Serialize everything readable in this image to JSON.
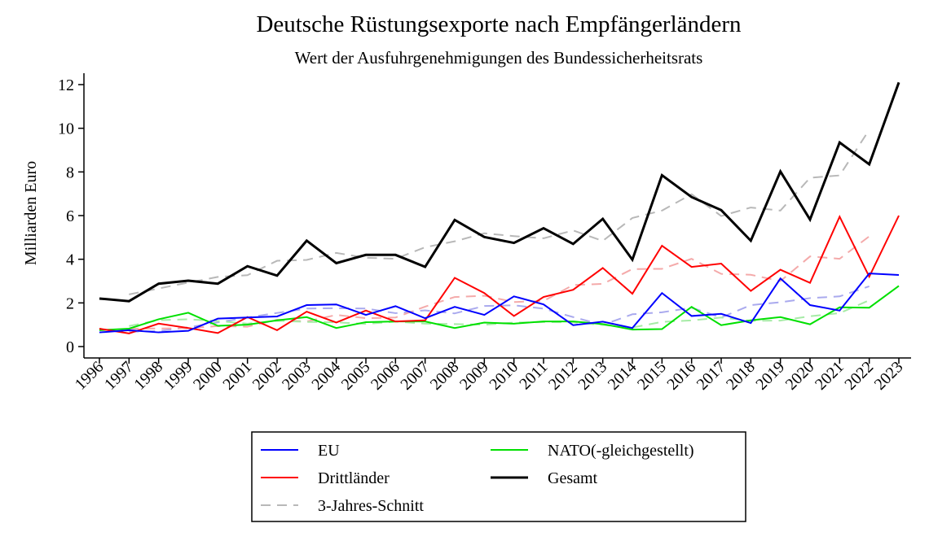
{
  "chart_data": {
    "type": "line",
    "title": "Deutsche Rüstungsexporte nach Empfängerländern",
    "subtitle": "Wert der Ausfuhrgenehmigungen des Bundessicherheitsrats",
    "xlabel": "",
    "ylabel": "Milliarden Euro",
    "ylim": [
      0,
      12
    ],
    "yticks": [
      0,
      2,
      4,
      6,
      8,
      10,
      12
    ],
    "grid": false,
    "legend_position": "bottom",
    "categories": [
      "1996",
      "1997",
      "1998",
      "1999",
      "2000",
      "2001",
      "2002",
      "2003",
      "2004",
      "2005",
      "2006",
      "2007",
      "2008",
      "2009",
      "2010",
      "2011",
      "2012",
      "2013",
      "2014",
      "2015",
      "2016",
      "2017",
      "2018",
      "2019",
      "2020",
      "2021",
      "2022",
      "2023"
    ],
    "series": [
      {
        "name": "EU",
        "color": "#0000ff",
        "values": [
          0.65,
          0.75,
          0.65,
          0.72,
          1.28,
          1.33,
          1.38,
          1.9,
          1.93,
          1.45,
          1.85,
          1.3,
          1.82,
          1.45,
          2.3,
          1.93,
          0.98,
          1.14,
          0.85,
          2.45,
          1.4,
          1.5,
          1.08,
          3.12,
          1.9,
          1.65,
          3.35,
          3.28
        ]
      },
      {
        "name": "Drittländer",
        "color": "#ff0000",
        "values": [
          0.82,
          0.6,
          1.05,
          0.85,
          0.62,
          1.35,
          0.75,
          1.6,
          1.1,
          1.65,
          1.15,
          1.2,
          3.15,
          2.45,
          1.4,
          2.27,
          2.6,
          3.6,
          2.42,
          4.62,
          3.65,
          3.8,
          2.55,
          3.52,
          2.92,
          5.95,
          3.2,
          6.0
        ]
      },
      {
        "name": "NATO(-gleichgestellt)",
        "color": "#00e000",
        "values": [
          0.75,
          0.82,
          1.25,
          1.55,
          0.95,
          1.0,
          1.2,
          1.35,
          0.85,
          1.12,
          1.15,
          1.15,
          0.85,
          1.1,
          1.05,
          1.15,
          1.15,
          1.03,
          0.78,
          0.8,
          1.82,
          0.98,
          1.2,
          1.35,
          1.02,
          1.8,
          1.78,
          2.78
        ]
      },
      {
        "name": "Gesamt",
        "color": "#000000",
        "values": [
          2.2,
          2.08,
          2.88,
          3.02,
          2.88,
          3.68,
          3.25,
          4.85,
          3.82,
          4.2,
          4.2,
          3.65,
          5.8,
          5.02,
          4.75,
          5.42,
          4.7,
          5.85,
          3.98,
          7.85,
          6.85,
          6.25,
          4.85,
          8.02,
          5.82,
          9.35,
          8.35,
          12.1
        ]
      }
    ],
    "moving_average": {
      "label": "3-Jahres-Schnitt",
      "color": "#b8b8b8",
      "series": [
        {
          "of": "EU",
          "color": "#aaaaee",
          "values": [
            null,
            0.68,
            0.71,
            0.88,
            1.11,
            1.33,
            1.54,
            1.74,
            1.76,
            1.74,
            1.53,
            1.66,
            1.52,
            1.86,
            1.89,
            1.74,
            1.35,
            0.99,
            1.48,
            1.57,
            1.78,
            1.33,
            1.9,
            2.03,
            2.22,
            2.3,
            2.76,
            null
          ]
        },
        {
          "of": "Drittländer",
          "color": "#f4aaaa",
          "values": [
            null,
            0.82,
            0.83,
            0.84,
            0.94,
            0.91,
            1.23,
            1.15,
            1.45,
            1.3,
            1.33,
            1.83,
            2.27,
            2.33,
            2.04,
            2.09,
            2.82,
            2.87,
            3.55,
            3.56,
            4.02,
            3.33,
            3.29,
            3.0,
            4.13,
            4.02,
            5.05,
            null
          ]
        },
        {
          "of": "NATO(-gleichgestellt)",
          "color": "#a6eba6",
          "values": [
            null,
            0.94,
            1.21,
            1.25,
            1.17,
            1.05,
            1.18,
            1.13,
            1.11,
            1.04,
            1.14,
            1.05,
            1.03,
            1.0,
            1.1,
            1.12,
            1.11,
            0.99,
            0.87,
            1.13,
            1.2,
            1.33,
            1.18,
            1.19,
            1.39,
            1.53,
            2.12,
            null
          ]
        },
        {
          "of": "Gesamt",
          "color": "#b8b8b8",
          "values": [
            null,
            2.39,
            2.66,
            2.93,
            3.19,
            3.27,
            3.93,
            3.97,
            4.29,
            4.07,
            4.02,
            4.55,
            4.82,
            5.19,
            5.06,
            4.96,
            5.32,
            4.84,
            5.89,
            6.23,
            6.98,
            5.98,
            6.37,
            6.23,
            7.73,
            7.84,
            9.93,
            null
          ]
        }
      ]
    }
  }
}
